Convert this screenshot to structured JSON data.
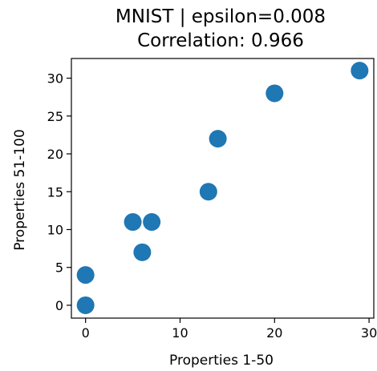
{
  "chart_data": {
    "type": "scatter",
    "title": "MNIST | epsilon=0.008",
    "subtitle": "Correlation: 0.966",
    "xlabel": "Properties 1-50",
    "ylabel": "Properties 51-100",
    "xlim": [
      -1.5,
      30.5
    ],
    "ylim": [
      -1.7,
      32.6
    ],
    "xticks": [
      0,
      10,
      20,
      30
    ],
    "yticks": [
      0,
      5,
      10,
      15,
      20,
      25,
      30
    ],
    "grid": false,
    "color": "#1f77b4",
    "points": [
      {
        "x": 0,
        "y": 0
      },
      {
        "x": 0,
        "y": 4
      },
      {
        "x": 5,
        "y": 11
      },
      {
        "x": 7,
        "y": 11
      },
      {
        "x": 6,
        "y": 7
      },
      {
        "x": 13,
        "y": 15
      },
      {
        "x": 14,
        "y": 22
      },
      {
        "x": 20,
        "y": 28
      },
      {
        "x": 29,
        "y": 31
      }
    ]
  }
}
